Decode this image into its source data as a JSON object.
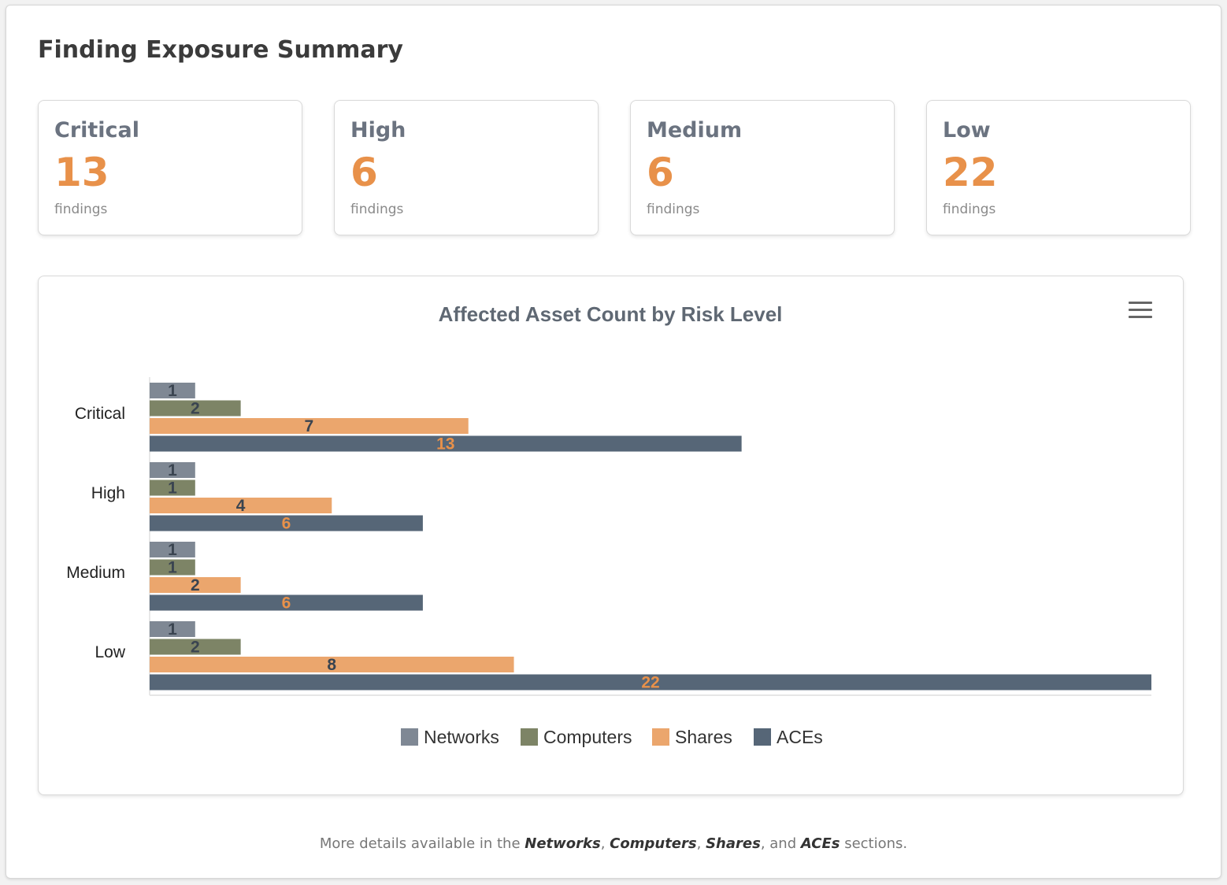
{
  "page_title": "Finding Exposure Summary",
  "cards": [
    {
      "label": "Critical",
      "count": "13",
      "unit": "findings"
    },
    {
      "label": "High",
      "count": "6",
      "unit": "findings"
    },
    {
      "label": "Medium",
      "count": "6",
      "unit": "findings"
    },
    {
      "label": "Low",
      "count": "22",
      "unit": "findings"
    }
  ],
  "colors": {
    "accent": "#e8914a",
    "networks": "#7f8894",
    "computers": "#7d8466",
    "shares": "#eba66d",
    "aces": "#566677"
  },
  "chart_menu_icon": "hamburger-menu-icon",
  "chart_data": {
    "type": "bar",
    "orientation": "horizontal",
    "title": "Affected Asset Count by Risk Level",
    "categories": [
      "Critical",
      "High",
      "Medium",
      "Low"
    ],
    "series": [
      {
        "name": "Networks",
        "values": [
          1,
          1,
          1,
          1
        ]
      },
      {
        "name": "Computers",
        "values": [
          2,
          1,
          1,
          2
        ]
      },
      {
        "name": "Shares",
        "values": [
          7,
          4,
          2,
          8
        ]
      },
      {
        "name": "ACEs",
        "values": [
          13,
          6,
          6,
          22
        ]
      }
    ],
    "xlim": [
      0,
      22
    ],
    "grid": false,
    "legend": "bottom-center",
    "data_labels": true
  },
  "footer": {
    "prefix": "More details available in the",
    "networks": "Networks",
    "sep1": ",",
    "computers": "Computers",
    "sep2": ",",
    "shares": "Shares",
    "sep3": ", and",
    "aces": "ACEs",
    "suffix": "sections."
  }
}
